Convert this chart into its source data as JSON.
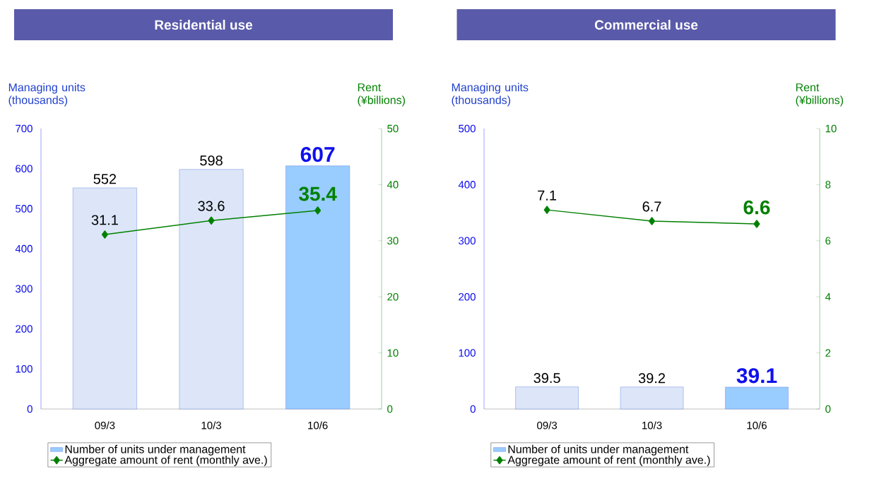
{
  "chart_data": [
    {
      "type": "bar",
      "title": "Residential use",
      "ylabel": "Managing units (thousands)",
      "y2label": "Rent (¥billions)",
      "categories": [
        "09/3",
        "10/3",
        "10/6"
      ],
      "series": [
        {
          "name": "Number of units under management",
          "colors": [
            "#dce6f8",
            "#dce6f8",
            "#99ccff"
          ],
          "values": [
            552,
            598,
            607
          ]
        },
        {
          "name": "Aggregate amount of rent (monthly ave.)",
          "type": "line",
          "axis": "y2",
          "color": "#008000",
          "marker": "diamond",
          "values": [
            31.1,
            33.6,
            35.4
          ]
        }
      ],
      "ylim": [
        0,
        700
      ],
      "yticks": [
        0,
        100,
        200,
        300,
        400,
        500,
        600,
        700
      ],
      "y2lim": [
        0,
        50
      ],
      "y2ticks": [
        0,
        10,
        20,
        30,
        40,
        50
      ],
      "data_labels": true,
      "legend": "bottom"
    },
    {
      "type": "bar",
      "title": "Commercial use",
      "ylabel": "Managing units (thousands)",
      "y2label": "Rent (¥billions)",
      "categories": [
        "09/3",
        "10/3",
        "10/6"
      ],
      "series": [
        {
          "name": "Number of units under management",
          "colors": [
            "#dce6f8",
            "#dce6f8",
            "#99ccff"
          ],
          "values": [
            39.5,
            39.2,
            39.1
          ]
        },
        {
          "name": "Aggregate amount of rent (monthly ave.)",
          "type": "line",
          "axis": "y2",
          "color": "#008000",
          "marker": "diamond",
          "values": [
            7.1,
            6.7,
            6.6
          ]
        }
      ],
      "ylim": [
        0,
        500
      ],
      "yticks": [
        0,
        100,
        200,
        300,
        400,
        500
      ],
      "y2lim": [
        0,
        10
      ],
      "y2ticks": [
        0,
        2,
        4,
        6,
        8,
        10
      ],
      "data_labels": true,
      "legend": "bottom"
    }
  ]
}
